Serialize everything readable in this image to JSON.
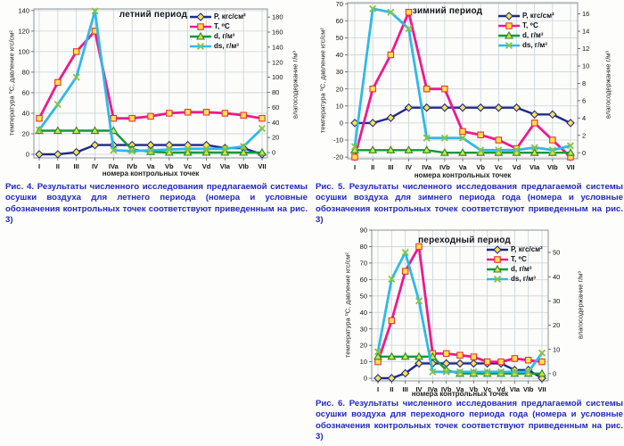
{
  "page": {
    "background": "#fdfdfb",
    "caption_color": "#2227c0",
    "grid_color": "#c9d2d6"
  },
  "chart_data": [
    {
      "type": "line",
      "title": "летний период",
      "x_label": "номера контрольных точек",
      "caption": "Рис. 4. Результаты численного исследования предлагаемой системы осушки воздуха для летнего периода (номера и условные обозначения контрольных точек соответствуют приведенным на рис. 3)",
      "categories": [
        "I",
        "II",
        "III",
        "IV",
        "IVa",
        "IVb",
        "Va",
        "Vb",
        "Vc",
        "Vd",
        "VIa",
        "VIb",
        "VII"
      ],
      "left_axis": {
        "label": "температура ⁰С, давление кгс/см²",
        "ticks": [
          0,
          20,
          40,
          60,
          80,
          100,
          120,
          140
        ],
        "range": [
          -3.5,
          141.6
        ]
      },
      "right_axis": {
        "label": "влагосодержание г/м³",
        "ticks": [
          0,
          20,
          40,
          60,
          80,
          100,
          120,
          140,
          160,
          180
        ],
        "range": [
          -7.1,
          190.8
        ]
      },
      "series": [
        {
          "name": "P, кгс/см²",
          "axis": "left",
          "color": "#1d2a8c",
          "width": 2.4,
          "marker": "diamond",
          "marker_fill": "#ffe14a",
          "marker_stroke": "#1d2a8c",
          "values": [
            0,
            0,
            2,
            9,
            9,
            9,
            9,
            9,
            9,
            9,
            6,
            6,
            0
          ]
        },
        {
          "name": "T, ⁰C",
          "axis": "left",
          "color": "#ee1a8d",
          "width": 2.8,
          "marker": "square",
          "marker_fill": "#ffe14a",
          "marker_stroke": "#e03636",
          "values": [
            35,
            70,
            100,
            120,
            35,
            35,
            37,
            40,
            41,
            41,
            40,
            38,
            35
          ]
        },
        {
          "name": "d, г/м³",
          "axis": "right",
          "color": "#11973f",
          "width": 2.4,
          "marker": "triangle",
          "marker_fill": "#d9e03a",
          "marker_stroke": "#1d8a34",
          "values": [
            29,
            29,
            29,
            29,
            29,
            4,
            1,
            0,
            0,
            0,
            0,
            0,
            0
          ]
        },
        {
          "name": "ds, г/м³",
          "axis": "right",
          "color": "#2fb9e8",
          "width": 2.8,
          "marker": "x",
          "marker_fill": "none",
          "marker_stroke": "#86c440",
          "values": [
            30,
            64,
            100,
            188,
            3,
            2,
            3,
            4,
            5,
            5,
            5,
            8,
            32
          ]
        }
      ]
    },
    {
      "type": "line",
      "title": "зимний период",
      "x_label": "номера контрольных точек",
      "caption": "Рис. 5. Результаты численного исследования предлагаемой системы осушки воздуха для зимнего периода года (номера и условные обозначения контрольных точек соответствуют приведенным на рис. 3)",
      "categories": [
        "I",
        "II",
        "III",
        "IV",
        "IVa",
        "IVb",
        "Va",
        "Vb",
        "Vc",
        "Vd",
        "VIa",
        "VIb",
        "VII"
      ],
      "left_axis": {
        "label": "температура ⁰С, давление кгс/см²",
        "ticks": [
          -20,
          -10,
          0,
          10,
          20,
          30,
          40,
          50,
          60,
          70
        ],
        "range": [
          -21,
          70.6
        ]
      },
      "right_axis": {
        "label": "влагосодержание г/м³",
        "ticks": [
          0,
          2,
          4,
          6,
          8,
          10,
          12,
          14,
          16
        ],
        "range": [
          -0.7,
          17.3
        ]
      },
      "series": [
        {
          "name": "P, кгс/см²",
          "axis": "left",
          "color": "#1d2a8c",
          "width": 2.4,
          "marker": "diamond",
          "marker_fill": "#ffe14a",
          "marker_stroke": "#1d2a8c",
          "values": [
            0,
            0,
            3,
            9,
            9,
            9,
            9,
            9,
            9,
            9,
            5,
            5,
            0
          ]
        },
        {
          "name": "T, ⁰C",
          "axis": "left",
          "color": "#ee1a8d",
          "width": 2.8,
          "marker": "square",
          "marker_fill": "#ffe14a",
          "marker_stroke": "#e03636",
          "values": [
            -20,
            20,
            40,
            65,
            20,
            20,
            -5,
            -7,
            -10,
            -15,
            0,
            -10,
            -20
          ]
        },
        {
          "name": "d, г/м³",
          "axis": "right",
          "color": "#11973f",
          "width": 2.4,
          "marker": "triangle",
          "marker_fill": "#d9e03a",
          "marker_stroke": "#1d8a34",
          "values": [
            0.3,
            0.3,
            0.3,
            0.3,
            0.3,
            0,
            0,
            0,
            0,
            0,
            0,
            0,
            0
          ]
        },
        {
          "name": "ds, г/м³",
          "axis": "right",
          "color": "#2fb9e8",
          "width": 2.8,
          "marker": "x",
          "marker_fill": "none",
          "marker_stroke": "#86c440",
          "values": [
            0.7,
            16.6,
            16.2,
            14.3,
            1.7,
            1.7,
            1.7,
            0.3,
            0.3,
            0.3,
            0.6,
            0.3,
            0.8
          ]
        }
      ]
    },
    {
      "type": "line",
      "title": "переходный период",
      "x_label": "номера контрольных точек",
      "caption": "Рис. 6. Результаты численного исследования предлагаемой системы осушки воздуха для переходного периода года (номера и условные обозначения контрольных точек соответствуют приведенным на рис. 3)",
      "categories": [
        "I",
        "II",
        "III",
        "IV",
        "IVa",
        "IVb",
        "Va",
        "Vb",
        "Vc",
        "Vd",
        "VIa",
        "VIb",
        "VII"
      ],
      "left_axis": {
        "label": "температура ⁰С, давление кгс/см²",
        "ticks": [
          0,
          10,
          20,
          30,
          40,
          50,
          60,
          70,
          80,
          90
        ],
        "range": [
          -1.6,
          90
        ]
      },
      "right_axis": {
        "label": "влагосодержание г/м³",
        "ticks": [
          0,
          10,
          20,
          30,
          40,
          50
        ],
        "range": [
          -3,
          59.2
        ]
      },
      "series": [
        {
          "name": "P, кгс/см²",
          "axis": "left",
          "color": "#1d2a8c",
          "width": 2.4,
          "marker": "diamond",
          "marker_fill": "#ffe14a",
          "marker_stroke": "#1d2a8c",
          "values": [
            0,
            0,
            3,
            9,
            9,
            9,
            9,
            9,
            9,
            9,
            5,
            5,
            0
          ]
        },
        {
          "name": "T, ⁰C",
          "axis": "left",
          "color": "#ee1a8d",
          "width": 2.8,
          "marker": "square",
          "marker_fill": "#ffe14a",
          "marker_stroke": "#e03636",
          "values": [
            10,
            35,
            65,
            80,
            15,
            15,
            14,
            13,
            10,
            10,
            12,
            11,
            10
          ]
        },
        {
          "name": "d, г/м³",
          "axis": "right",
          "color": "#11973f",
          "width": 2.4,
          "marker": "triangle",
          "marker_fill": "#d9e03a",
          "marker_stroke": "#1d8a34",
          "values": [
            7,
            7,
            7,
            7,
            7,
            1.5,
            0,
            0,
            0,
            0,
            0,
            0,
            0
          ]
        },
        {
          "name": "ds, г/м³",
          "axis": "right",
          "color": "#2fb9e8",
          "width": 2.8,
          "marker": "x",
          "marker_fill": "none",
          "marker_stroke": "#86c440",
          "values": [
            9,
            39,
            50,
            30,
            0.7,
            0.7,
            0.7,
            0.7,
            0.7,
            0.7,
            0.7,
            0.7,
            8.5
          ]
        }
      ]
    }
  ]
}
